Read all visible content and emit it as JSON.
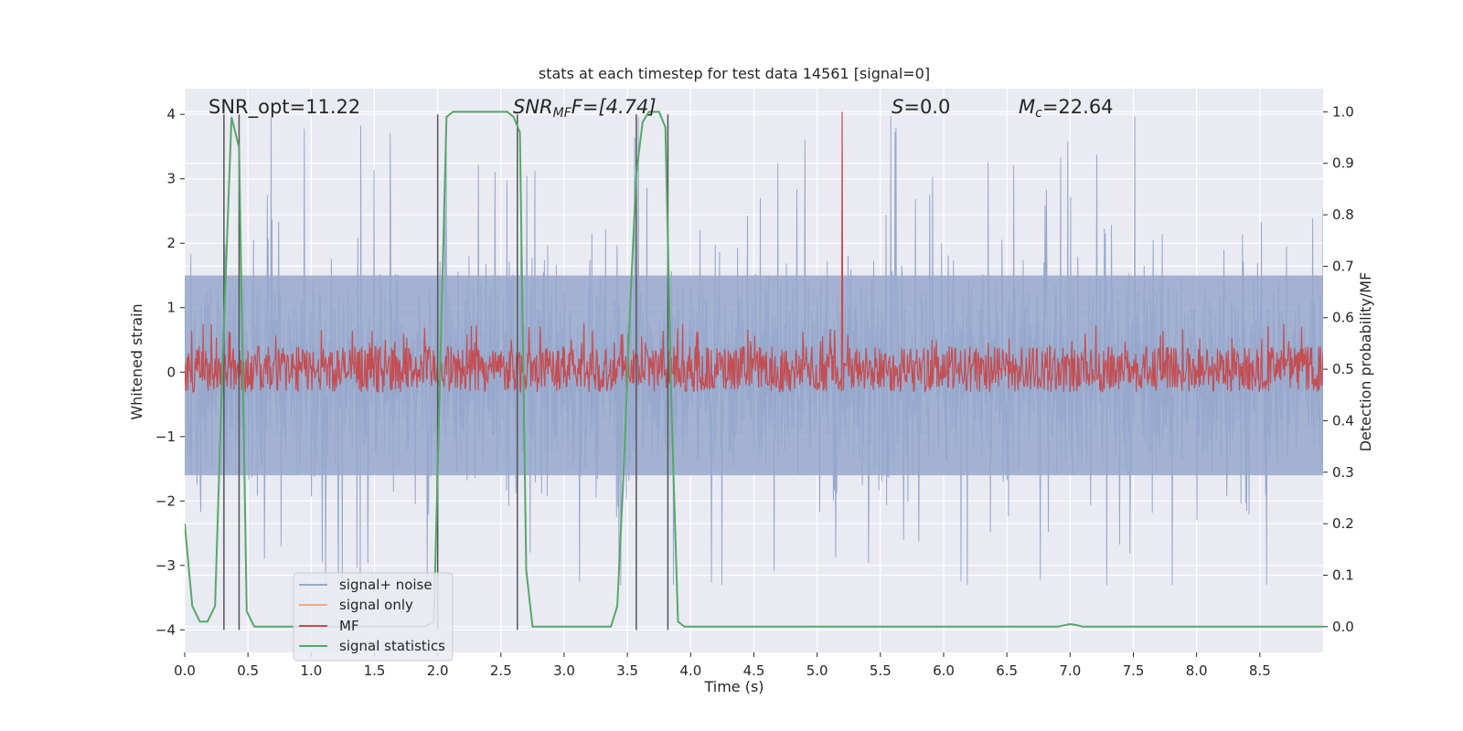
{
  "chart_data": {
    "type": "line",
    "title": "stats at each timestep for test data 14561 [signal=0]",
    "xlabel": "Time (s)",
    "ylabel_left": "Whitened strain",
    "ylabel_right": "Detection probability/MF",
    "xlim": [
      0.0,
      9.0
    ],
    "ylim_left": [
      -4.35,
      4.4
    ],
    "ylim_right": [
      -0.05,
      1.045
    ],
    "x_ticks": [
      "0.0",
      "0.5",
      "1.0",
      "1.5",
      "2.0",
      "2.5",
      "3.0",
      "3.5",
      "4.0",
      "4.5",
      "5.0",
      "5.5",
      "6.0",
      "6.5",
      "7.0",
      "7.5",
      "8.0",
      "8.5"
    ],
    "y_ticks_left": [
      "−4",
      "−3",
      "−2",
      "−1",
      "0",
      "1",
      "2",
      "3",
      "4"
    ],
    "y_ticks_right": [
      "0.0",
      "0.1",
      "0.2",
      "0.3",
      "0.4",
      "0.5",
      "0.6",
      "0.7",
      "0.8",
      "0.9",
      "1.0"
    ],
    "grid": true,
    "annotations": {
      "snr_opt": "SNR_opt=11.22",
      "snr_mf_main": "SNR",
      "snr_mf_sub": "MF",
      "snr_mf_tail": "F=[4.74]",
      "s_main": "S",
      "s_tail": "=0.0",
      "mc_main": "M",
      "mc_sub": "c",
      "mc_tail": "=22.64"
    },
    "vertical_lines_x": [
      0.31,
      0.43,
      2.0,
      2.63,
      3.57,
      3.82
    ],
    "vertical_lines_ylim_left": [
      -4.0,
      4.0
    ],
    "noise_band": {
      "description": "dense whitened strain trace",
      "typical_upper": 1.5,
      "typical_lower": -1.6,
      "spike_max": 4.0,
      "spike_min": -3.3
    },
    "mf_band": {
      "low": 0.05,
      "high": 0.55,
      "spike_max": 1.0
    },
    "series": [
      {
        "name": "signal+ noise",
        "axis": "left",
        "color": "#97a8cc",
        "kind": "dense-noise"
      },
      {
        "name": "signal only",
        "axis": "left",
        "color": "#f0a98a",
        "kind": "empty"
      },
      {
        "name": "MF",
        "axis": "right",
        "color": "#c44e52",
        "kind": "dense-mf"
      },
      {
        "name": "signal statistics",
        "axis": "right",
        "color": "#55a868",
        "x": [
          0.0,
          0.06,
          0.12,
          0.18,
          0.24,
          0.3,
          0.37,
          0.43,
          0.49,
          0.55,
          0.8,
          1.2,
          1.6,
          1.9,
          1.97,
          2.02,
          2.07,
          2.12,
          2.4,
          2.55,
          2.6,
          2.65,
          2.7,
          2.75,
          2.8,
          3.0,
          3.2,
          3.37,
          3.42,
          3.47,
          3.52,
          3.57,
          3.62,
          3.67,
          3.75,
          3.8,
          3.85,
          3.9,
          3.95,
          4.0,
          5.0,
          6.0,
          6.8,
          6.9,
          7.0,
          7.05,
          7.1,
          8.0,
          9.0
        ],
        "y": [
          0.2,
          0.04,
          0.01,
          0.01,
          0.04,
          0.52,
          0.99,
          0.93,
          0.03,
          0.0,
          0.0,
          0.0,
          0.0,
          0.0,
          0.01,
          0.5,
          0.99,
          1.0,
          1.0,
          1.0,
          0.99,
          0.96,
          0.11,
          0.0,
          0.0,
          0.0,
          0.0,
          0.0,
          0.04,
          0.3,
          0.61,
          0.88,
          0.98,
          1.0,
          1.0,
          0.97,
          0.41,
          0.01,
          0.0,
          0.0,
          0.0,
          0.0,
          0.0,
          0.0,
          0.005,
          0.003,
          0.0,
          0.0,
          0.0
        ]
      }
    ],
    "colors": {
      "plot_bg": "#eaeaf2",
      "grid": "#ffffff",
      "vline": "#555555",
      "legend_bg": "#eaeaf2",
      "legend_border": "#cccccc"
    },
    "legend_placement": "lower-left"
  }
}
